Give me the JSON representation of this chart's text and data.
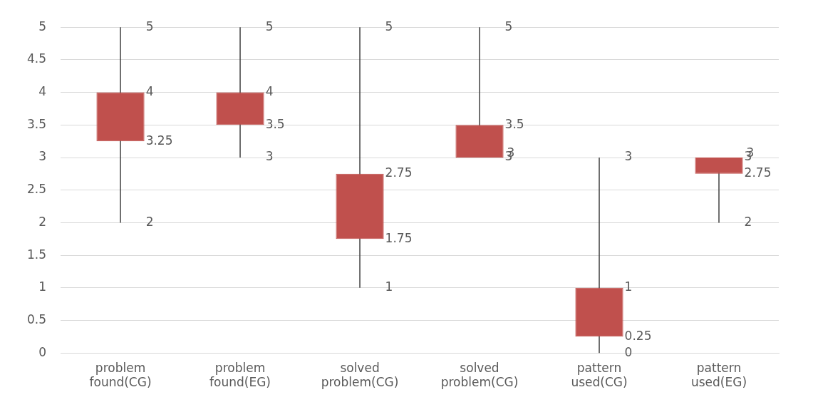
{
  "chart_data": {
    "type": "candlestick",
    "categories": [
      "problem found(CG)",
      "problem found(EG)",
      "solved problem(CG)",
      "solved problem(CG)",
      "pattern used(CG)",
      "pattern used(EG)"
    ],
    "ohlc": [
      [
        4,
        5,
        2,
        3.25
      ],
      [
        4,
        5,
        3,
        3.5
      ],
      [
        2.75,
        5,
        1,
        1.75
      ],
      [
        3.5,
        5,
        3,
        3
      ],
      [
        1,
        3,
        0,
        0.25
      ],
      [
        3,
        3,
        2,
        2.75
      ]
    ],
    "value_labels": [
      [
        "4",
        "5",
        "2",
        "3.25"
      ],
      [
        "4",
        "5",
        "3",
        "3.5"
      ],
      [
        "2.75",
        "5",
        "1",
        "1.75"
      ],
      [
        "3.5",
        "5",
        "3",
        "3"
      ],
      [
        "1",
        "3",
        "0",
        "0.25"
      ],
      [
        "3",
        "3",
        "2",
        "2.75"
      ]
    ],
    "color": "#c0504d",
    "ylim": [
      0,
      5
    ],
    "yticks": [
      0,
      0.5,
      1,
      1.5,
      2,
      2.5,
      3,
      3.5,
      4,
      4.5,
      5
    ],
    "grid": "y"
  }
}
